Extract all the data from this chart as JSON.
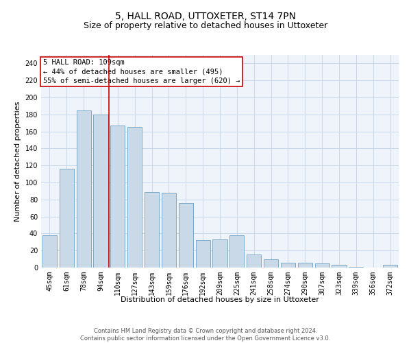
{
  "title": "5, HALL ROAD, UTTOXETER, ST14 7PN",
  "subtitle": "Size of property relative to detached houses in Uttoxeter",
  "xlabel": "Distribution of detached houses by size in Uttoxeter",
  "ylabel": "Number of detached properties",
  "categories": [
    "45sqm",
    "61sqm",
    "78sqm",
    "94sqm",
    "110sqm",
    "127sqm",
    "143sqm",
    "159sqm",
    "176sqm",
    "192sqm",
    "209sqm",
    "225sqm",
    "241sqm",
    "258sqm",
    "274sqm",
    "290sqm",
    "307sqm",
    "323sqm",
    "339sqm",
    "356sqm",
    "372sqm"
  ],
  "values": [
    38,
    116,
    185,
    180,
    167,
    165,
    89,
    88,
    76,
    32,
    33,
    38,
    15,
    10,
    6,
    6,
    5,
    3,
    1,
    0,
    3
  ],
  "bar_color": "#c9d9e8",
  "bar_edge_color": "#7aaac8",
  "vline_color": "#cc0000",
  "annotation_box_text": "5 HALL ROAD: 109sqm\n← 44% of detached houses are smaller (495)\n55% of semi-detached houses are larger (620) →",
  "annotation_box_color": "#cc0000",
  "ylim": [
    0,
    250
  ],
  "yticks": [
    0,
    20,
    40,
    60,
    80,
    100,
    120,
    140,
    160,
    180,
    200,
    220,
    240
  ],
  "grid_color": "#c8d8e8",
  "bg_color": "#eef4fa",
  "footnote": "Contains HM Land Registry data © Crown copyright and database right 2024.\nContains public sector information licensed under the Open Government Licence v3.0.",
  "title_fontsize": 10,
  "subtitle_fontsize": 9,
  "axis_label_fontsize": 8,
  "tick_fontsize": 7,
  "annotation_fontsize": 7.5,
  "footnote_fontsize": 6
}
